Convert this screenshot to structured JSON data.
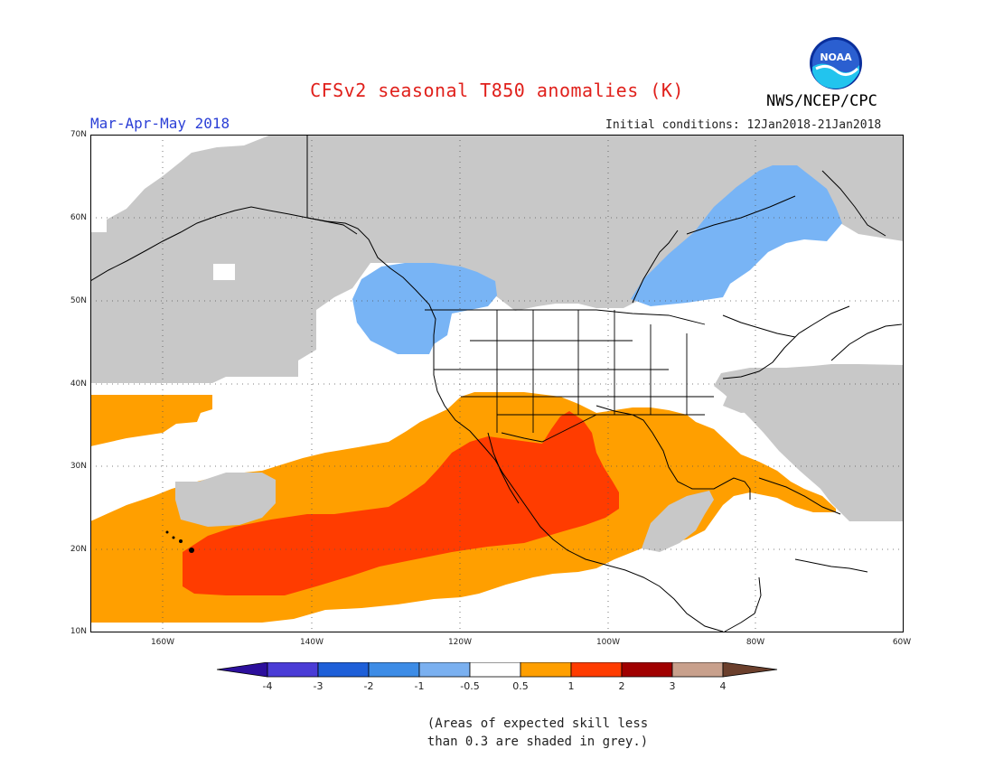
{
  "header": {
    "title": "CFSv2 seasonal T850 anomalies (K)",
    "agency": "NWS/NCEP/CPC",
    "season": "Mar-Apr-May 2018",
    "initial_conditions": "Initial conditions: 12Jan2018-21Jan2018",
    "logo_text": "NOAA"
  },
  "axes": {
    "lat_labels": [
      "70N",
      "60N",
      "50N",
      "40N",
      "30N",
      "20N",
      "10N"
    ],
    "lon_labels": [
      "160W",
      "140W",
      "120W",
      "100W",
      "80W",
      "60W"
    ]
  },
  "colorbar": {
    "ticks": [
      "-4",
      "-3",
      "-2",
      "-1",
      "-0.5",
      "0.5",
      "1",
      "2",
      "3",
      "4"
    ],
    "colors": [
      "#2c0f9c",
      "#4a3cd6",
      "#1e5fd8",
      "#3d8ce6",
      "#7ab0f0",
      "#ffffff",
      "#ff9f00",
      "#ff3c00",
      "#a00000",
      "#c8a08c",
      "#6b3f2c"
    ]
  },
  "note": {
    "line1": "(Areas of expected skill less",
    "line2": "than 0.3 are shaded in grey.)"
  },
  "colors": {
    "grey": "#c8c8c8",
    "light_blue": "#78b4f5",
    "orange": "#ff9f00",
    "red_orange": "#ff3c00",
    "title_red": "#e0201b",
    "season_blue": "#2b3fd6"
  }
}
